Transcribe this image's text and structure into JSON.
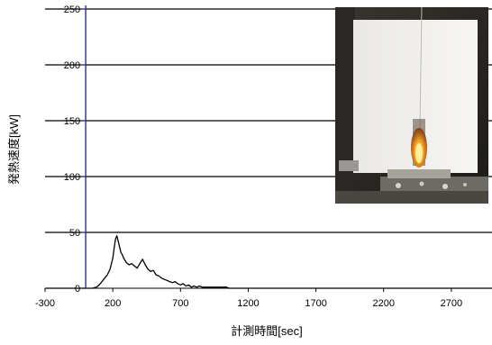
{
  "chart_data": {
    "type": "line",
    "title": "",
    "xlabel": "計測時間[sec]",
    "ylabel": "発熱速度[kW]",
    "xlim": [
      -300,
      3000
    ],
    "ylim": [
      0,
      250
    ],
    "x_ticks": [
      -300,
      200,
      700,
      1200,
      1700,
      2200,
      2700
    ],
    "y_ticks": [
      0,
      50,
      100,
      150,
      200,
      250
    ],
    "grid": "horizontal",
    "colors": {
      "line": "#000000",
      "y_axis": "#1f1f8f",
      "grid": "#000000"
    },
    "inset": {
      "type": "photo",
      "subject": "fire test on a white panel"
    },
    "series": [
      {
        "x": [
          -300,
          0,
          50,
          80,
          100,
          120,
          140,
          160,
          180,
          200,
          210,
          220,
          230,
          240,
          250,
          260,
          270,
          280,
          300,
          320,
          340,
          360,
          380,
          400,
          420,
          440,
          460,
          480,
          500,
          520,
          540,
          560,
          580,
          600,
          620,
          640,
          660,
          680,
          700,
          720,
          740,
          760,
          780,
          800,
          820,
          840,
          860,
          880,
          900,
          920,
          940,
          960,
          980,
          1000,
          1020,
          1040,
          1060,
          1080,
          1100,
          1200,
          1500,
          2000,
          2500,
          3000
        ],
        "values": [
          0,
          0,
          0,
          1,
          3,
          6,
          9,
          12,
          17,
          27,
          36,
          44,
          47,
          42,
          37,
          32,
          30,
          27,
          23,
          21,
          22,
          20,
          18,
          22,
          26,
          21,
          17,
          15,
          16,
          12,
          11,
          9,
          8,
          7,
          6,
          5,
          6,
          4,
          3,
          4,
          2,
          3,
          1,
          2,
          1,
          2,
          1,
          1,
          1,
          1,
          1,
          1,
          1,
          1,
          1,
          1,
          0,
          0,
          0,
          0,
          0,
          0,
          0,
          0
        ]
      }
    ]
  }
}
